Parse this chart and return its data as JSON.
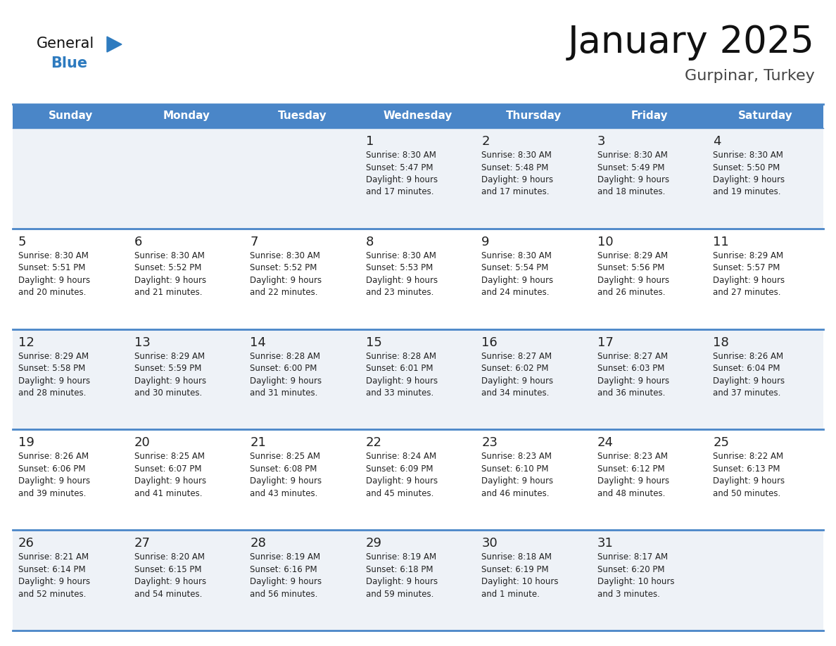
{
  "title": "January 2025",
  "subtitle": "Gurpinar, Turkey",
  "days_of_week": [
    "Sunday",
    "Monday",
    "Tuesday",
    "Wednesday",
    "Thursday",
    "Friday",
    "Saturday"
  ],
  "header_bg": "#4a86c8",
  "header_text_color": "#ffffff",
  "cell_bg_odd": "#eef2f7",
  "cell_bg_even": "#ffffff",
  "row_line_color": "#4a86c8",
  "text_color": "#222222",
  "title_color": "#111111",
  "subtitle_color": "#444444",
  "logo_general_color": "#111111",
  "logo_blue_color": "#2e7bbf",
  "calendar_data": [
    [
      {
        "day": null,
        "sunrise": null,
        "sunset": null,
        "daylight": null
      },
      {
        "day": null,
        "sunrise": null,
        "sunset": null,
        "daylight": null
      },
      {
        "day": null,
        "sunrise": null,
        "sunset": null,
        "daylight": null
      },
      {
        "day": 1,
        "sunrise": "8:30 AM",
        "sunset": "5:47 PM",
        "daylight": "9 hours and 17 minutes."
      },
      {
        "day": 2,
        "sunrise": "8:30 AM",
        "sunset": "5:48 PM",
        "daylight": "9 hours and 17 minutes."
      },
      {
        "day": 3,
        "sunrise": "8:30 AM",
        "sunset": "5:49 PM",
        "daylight": "9 hours and 18 minutes."
      },
      {
        "day": 4,
        "sunrise": "8:30 AM",
        "sunset": "5:50 PM",
        "daylight": "9 hours and 19 minutes."
      }
    ],
    [
      {
        "day": 5,
        "sunrise": "8:30 AM",
        "sunset": "5:51 PM",
        "daylight": "9 hours and 20 minutes."
      },
      {
        "day": 6,
        "sunrise": "8:30 AM",
        "sunset": "5:52 PM",
        "daylight": "9 hours and 21 minutes."
      },
      {
        "day": 7,
        "sunrise": "8:30 AM",
        "sunset": "5:52 PM",
        "daylight": "9 hours and 22 minutes."
      },
      {
        "day": 8,
        "sunrise": "8:30 AM",
        "sunset": "5:53 PM",
        "daylight": "9 hours and 23 minutes."
      },
      {
        "day": 9,
        "sunrise": "8:30 AM",
        "sunset": "5:54 PM",
        "daylight": "9 hours and 24 minutes."
      },
      {
        "day": 10,
        "sunrise": "8:29 AM",
        "sunset": "5:56 PM",
        "daylight": "9 hours and 26 minutes."
      },
      {
        "day": 11,
        "sunrise": "8:29 AM",
        "sunset": "5:57 PM",
        "daylight": "9 hours and 27 minutes."
      }
    ],
    [
      {
        "day": 12,
        "sunrise": "8:29 AM",
        "sunset": "5:58 PM",
        "daylight": "9 hours and 28 minutes."
      },
      {
        "day": 13,
        "sunrise": "8:29 AM",
        "sunset": "5:59 PM",
        "daylight": "9 hours and 30 minutes."
      },
      {
        "day": 14,
        "sunrise": "8:28 AM",
        "sunset": "6:00 PM",
        "daylight": "9 hours and 31 minutes."
      },
      {
        "day": 15,
        "sunrise": "8:28 AM",
        "sunset": "6:01 PM",
        "daylight": "9 hours and 33 minutes."
      },
      {
        "day": 16,
        "sunrise": "8:27 AM",
        "sunset": "6:02 PM",
        "daylight": "9 hours and 34 minutes."
      },
      {
        "day": 17,
        "sunrise": "8:27 AM",
        "sunset": "6:03 PM",
        "daylight": "9 hours and 36 minutes."
      },
      {
        "day": 18,
        "sunrise": "8:26 AM",
        "sunset": "6:04 PM",
        "daylight": "9 hours and 37 minutes."
      }
    ],
    [
      {
        "day": 19,
        "sunrise": "8:26 AM",
        "sunset": "6:06 PM",
        "daylight": "9 hours and 39 minutes."
      },
      {
        "day": 20,
        "sunrise": "8:25 AM",
        "sunset": "6:07 PM",
        "daylight": "9 hours and 41 minutes."
      },
      {
        "day": 21,
        "sunrise": "8:25 AM",
        "sunset": "6:08 PM",
        "daylight": "9 hours and 43 minutes."
      },
      {
        "day": 22,
        "sunrise": "8:24 AM",
        "sunset": "6:09 PM",
        "daylight": "9 hours and 45 minutes."
      },
      {
        "day": 23,
        "sunrise": "8:23 AM",
        "sunset": "6:10 PM",
        "daylight": "9 hours and 46 minutes."
      },
      {
        "day": 24,
        "sunrise": "8:23 AM",
        "sunset": "6:12 PM",
        "daylight": "9 hours and 48 minutes."
      },
      {
        "day": 25,
        "sunrise": "8:22 AM",
        "sunset": "6:13 PM",
        "daylight": "9 hours and 50 minutes."
      }
    ],
    [
      {
        "day": 26,
        "sunrise": "8:21 AM",
        "sunset": "6:14 PM",
        "daylight": "9 hours and 52 minutes."
      },
      {
        "day": 27,
        "sunrise": "8:20 AM",
        "sunset": "6:15 PM",
        "daylight": "9 hours and 54 minutes."
      },
      {
        "day": 28,
        "sunrise": "8:19 AM",
        "sunset": "6:16 PM",
        "daylight": "9 hours and 56 minutes."
      },
      {
        "day": 29,
        "sunrise": "8:19 AM",
        "sunset": "6:18 PM",
        "daylight": "9 hours and 59 minutes."
      },
      {
        "day": 30,
        "sunrise": "8:18 AM",
        "sunset": "6:19 PM",
        "daylight": "10 hours and 1 minute."
      },
      {
        "day": 31,
        "sunrise": "8:17 AM",
        "sunset": "6:20 PM",
        "daylight": "10 hours and 3 minutes."
      },
      {
        "day": null,
        "sunrise": null,
        "sunset": null,
        "daylight": null
      }
    ]
  ]
}
